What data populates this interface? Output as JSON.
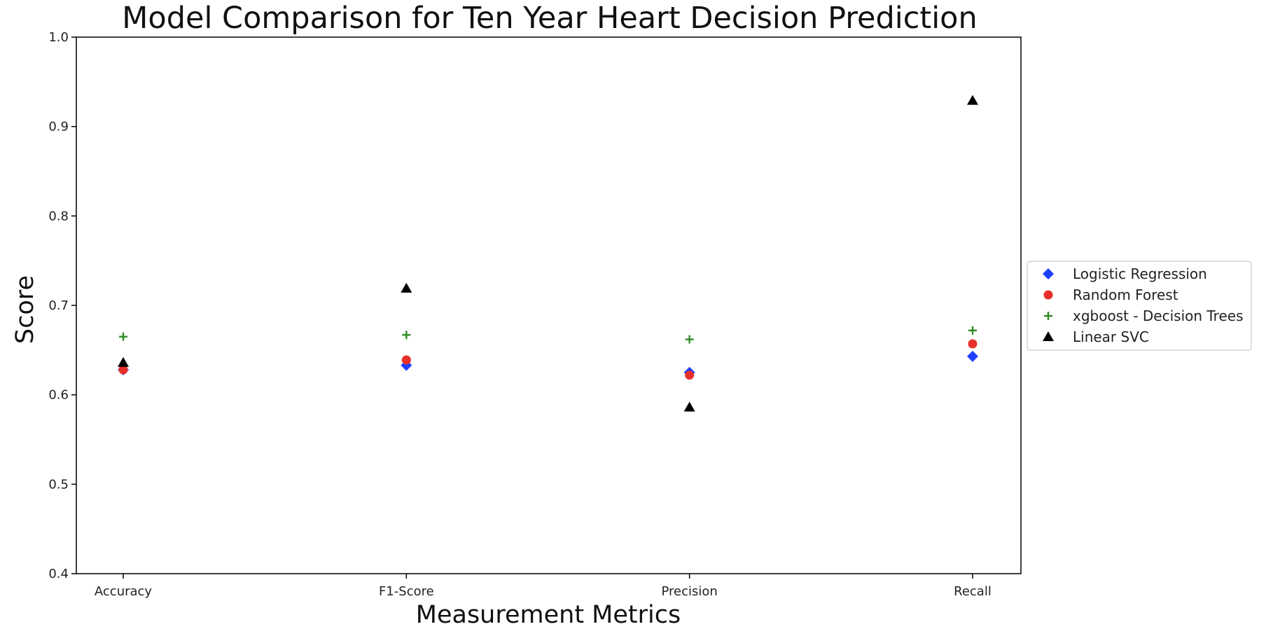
{
  "chart_data": {
    "type": "scatter",
    "title": "Model Comparison for Ten Year Heart Decision Prediction",
    "xlabel": "Measurement Metrics",
    "ylabel": "Score",
    "categories": [
      "Accuracy",
      "F1-Score",
      "Precision",
      "Recall"
    ],
    "ylim": [
      0.4,
      1.0
    ],
    "yticks": [
      0.4,
      0.5,
      0.6,
      0.7,
      0.8,
      0.9,
      1.0
    ],
    "grid": false,
    "legend": "right",
    "series": [
      {
        "name": "Logistic Regression",
        "marker": "diamond",
        "color": "#1f3fff",
        "values": [
          0.628,
          0.633,
          0.625,
          0.643
        ]
      },
      {
        "name": "Random Forest",
        "marker": "circle",
        "color": "#e8302a",
        "values": [
          0.628,
          0.639,
          0.622,
          0.657
        ]
      },
      {
        "name": "xgboost - Decision Trees",
        "marker": "plus",
        "color": "#2e8b22",
        "values": [
          0.665,
          0.667,
          0.662,
          0.672
        ]
      },
      {
        "name": "Linear SVC",
        "marker": "triangle",
        "color": "#000000",
        "values": [
          0.636,
          0.719,
          0.586,
          0.929
        ]
      }
    ]
  }
}
